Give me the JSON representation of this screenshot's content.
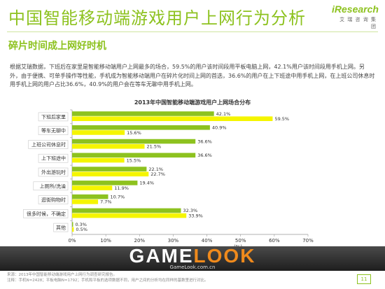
{
  "header": {
    "title": "中国智能移动端游戏用户上网行为分析",
    "subtitle": "碎片时间成上网好时机",
    "logo_text": "iResearch",
    "logo_sub": "艾 瑞 咨 询 集 团"
  },
  "intro": "根据艾瑞数据，下班后在家里是智能移动端用户上网最多的场合，59.5%的用户该时间段用平板电脑上网，42.1%用户该时间段用手机上网。另外，由于便携、可单手操作等性能，手机成为智能移动端用户在碎片化时间上网的首选，36.6%的用户在上下班途中用手机上网，在上班公司休息时用手机上网的用户占比36.6%，40.9%的用户会在等车无聊中用手机上网。",
  "chart_data": {
    "type": "bar",
    "orientation": "horizontal",
    "title": "2013年中国智能移动端游戏用户上网场合分布",
    "categories": [
      "下班后家里",
      "等车无聊中",
      "上班公司休息时",
      "上下班途中",
      "外出游玩时",
      "上厕所/洗澡",
      "逛街购物时",
      "很多时候，不确定",
      "其他"
    ],
    "series": [
      {
        "values": [
          42.1,
          40.9,
          36.6,
          36.6,
          22.1,
          19.4,
          10.7,
          32.3,
          0.3
        ],
        "color": "#8dc21f"
      },
      {
        "values": [
          59.5,
          15.6,
          21.5,
          15.5,
          22.7,
          11.9,
          7.7,
          33.9,
          0.5
        ],
        "color": "#f5f500"
      }
    ],
    "value_suffix": "%",
    "xlim": [
      0,
      70
    ],
    "xticks": [
      "0%",
      "10%",
      "20%",
      "30%",
      "40%",
      "50%",
      "60%",
      "70%"
    ],
    "grid": false,
    "ylabel": "(%)"
  },
  "footer": {
    "source": "来源：2013年中国智能移动端游戏用户上网行为调查研究报告。",
    "note": "注释：手机N=2428；平板电脑N=1792；手机和平板的选项数据不同，用户之间的分析均在同样的基数里进行对比。",
    "watermark_left": "GAME",
    "watermark_right": "LOOK",
    "watermark_url": "GameLook.com.cn",
    "page_number": "11"
  }
}
